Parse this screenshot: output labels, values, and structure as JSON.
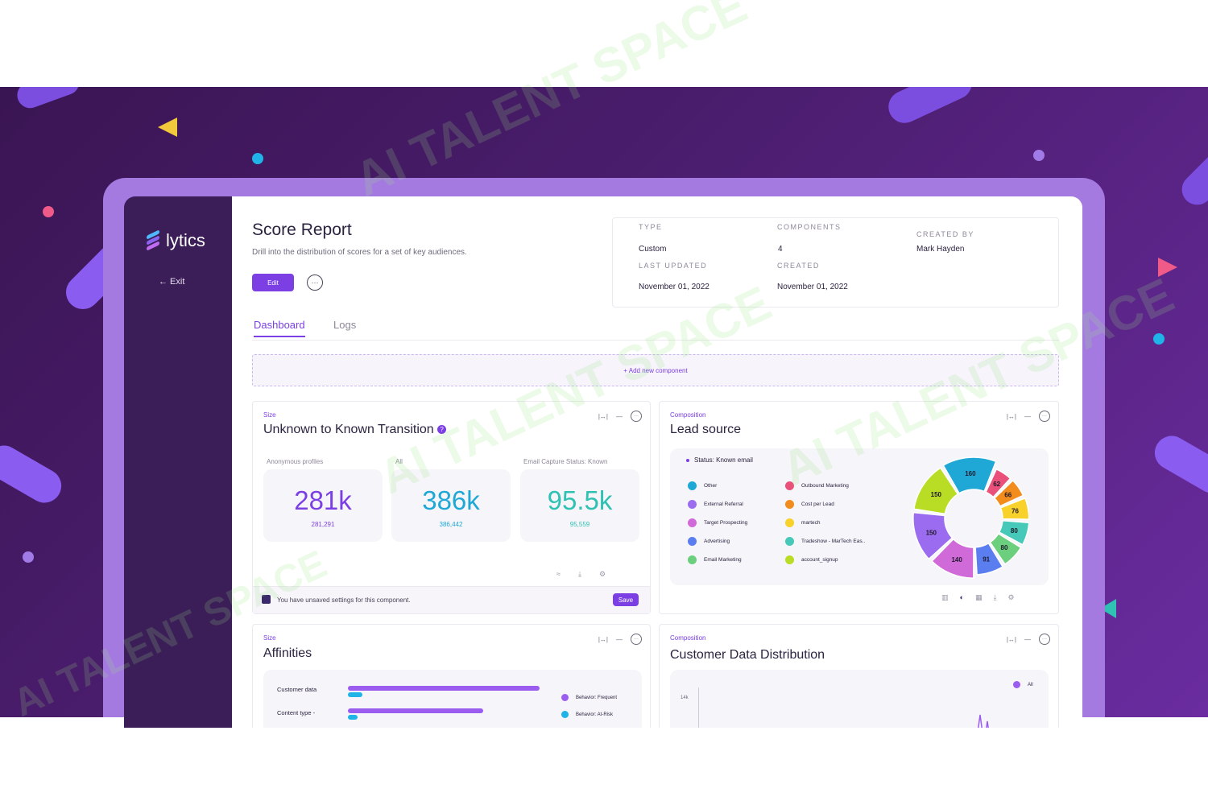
{
  "brand": {
    "name": "lytics",
    "exit_label": "← Exit"
  },
  "header": {
    "title": "Score Report",
    "subtitle": "Drill into the distribution of scores for a set of key audiences.",
    "edit_label": "Edit",
    "more_label": "···"
  },
  "meta": {
    "type_label": "TYPE",
    "type_value": "Custom",
    "components_label": "COMPONENTS",
    "components_value": "4",
    "created_by_label": "CREATED BY",
    "created_by_value": "Mark Hayden",
    "last_updated_label": "LAST UPDATED",
    "last_updated_value": "November 01, 2022",
    "created_label": "CREATED",
    "created_value": "November 01, 2022"
  },
  "tabs": [
    {
      "label": "Dashboard"
    },
    {
      "label": "Logs"
    }
  ],
  "add_component_label": "+ Add new component",
  "cards": {
    "transition": {
      "eyebrow": "Size",
      "title": "Unknown to Known Transition",
      "help_icon": "?",
      "stats": [
        {
          "label": "Anonymous profiles",
          "big": "281k",
          "small": "281,291",
          "color": "#7b3fe4"
        },
        {
          "label": "All",
          "big": "386k",
          "small": "386,442",
          "color": "#1fa8d6"
        },
        {
          "label": "Email Capture Status: Known",
          "big": "95.5k",
          "small": "95,559",
          "color": "#2fc1b3"
        }
      ],
      "unsaved_msg": "You have unsaved settings for this component.",
      "save_label": "Save"
    },
    "lead": {
      "eyebrow": "Composition",
      "title": "Lead source",
      "status": "Status: Known email",
      "legend": [
        {
          "label": "Other",
          "color": "#1fa8d6"
        },
        {
          "label": "Outbound Marketing",
          "color": "#e9517a"
        },
        {
          "label": "External Referral",
          "color": "#9b6cf0"
        },
        {
          "label": "Cost per Lead",
          "color": "#f28c1c"
        },
        {
          "label": "Target Prospecting",
          "color": "#d06ad8"
        },
        {
          "label": "martech",
          "color": "#f8d12a"
        },
        {
          "label": "Advertising",
          "color": "#5a7df0"
        },
        {
          "label": "Tradeshow - MarTech Eas..",
          "color": "#46c9b8"
        },
        {
          "label": "Email Marketing",
          "color": "#6ccf7d"
        },
        {
          "label": "account_signup",
          "color": "#b9dc25"
        }
      ]
    },
    "affinities": {
      "eyebrow": "Size",
      "title": "Affinities",
      "rows": [
        "Customer data",
        "Content type -"
      ],
      "legend": [
        "Behavior: Frequent",
        "Behavior: At-Risk"
      ]
    },
    "distribution": {
      "eyebrow": "Composition",
      "title": "Customer Data Distribution",
      "y_tick": "14k",
      "legend": "All"
    }
  },
  "chart_data": {
    "type": "pie",
    "categories": [
      "Other",
      "Outbound Marketing",
      "Cost per Lead",
      "martech",
      "Tradeshow - MarTech Eas..",
      "Email Marketing",
      "Advertising",
      "Target Prospecting",
      "External Referral",
      "account_signup"
    ],
    "values": [
      160,
      62,
      66,
      76,
      80,
      80,
      91,
      140,
      150,
      150
    ]
  }
}
